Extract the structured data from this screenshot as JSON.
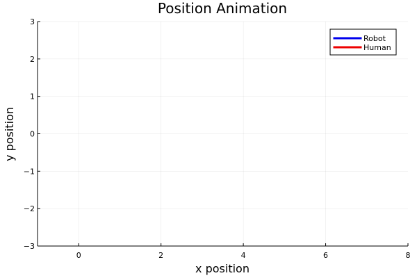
{
  "chart_data": {
    "type": "line",
    "title": "Position Animation",
    "xlabel": "x position",
    "ylabel": "y position",
    "xlim": [
      -1,
      8
    ],
    "ylim": [
      -3,
      3
    ],
    "xticks": [
      0,
      2,
      4,
      6,
      8
    ],
    "xtick_labels": [
      "0",
      "2",
      "4",
      "6",
      "8"
    ],
    "yticks": [
      -3,
      -2,
      -1,
      0,
      1,
      2,
      3
    ],
    "ytick_labels": [
      "−3",
      "−2",
      "−1",
      "0",
      "1",
      "2",
      "3"
    ],
    "grid": true,
    "legend_position": "top-right",
    "series": [
      {
        "name": "Robot",
        "color": "#0000ee",
        "x": [],
        "y": []
      },
      {
        "name": "Human",
        "color": "#ee0000",
        "x": [],
        "y": []
      }
    ]
  }
}
